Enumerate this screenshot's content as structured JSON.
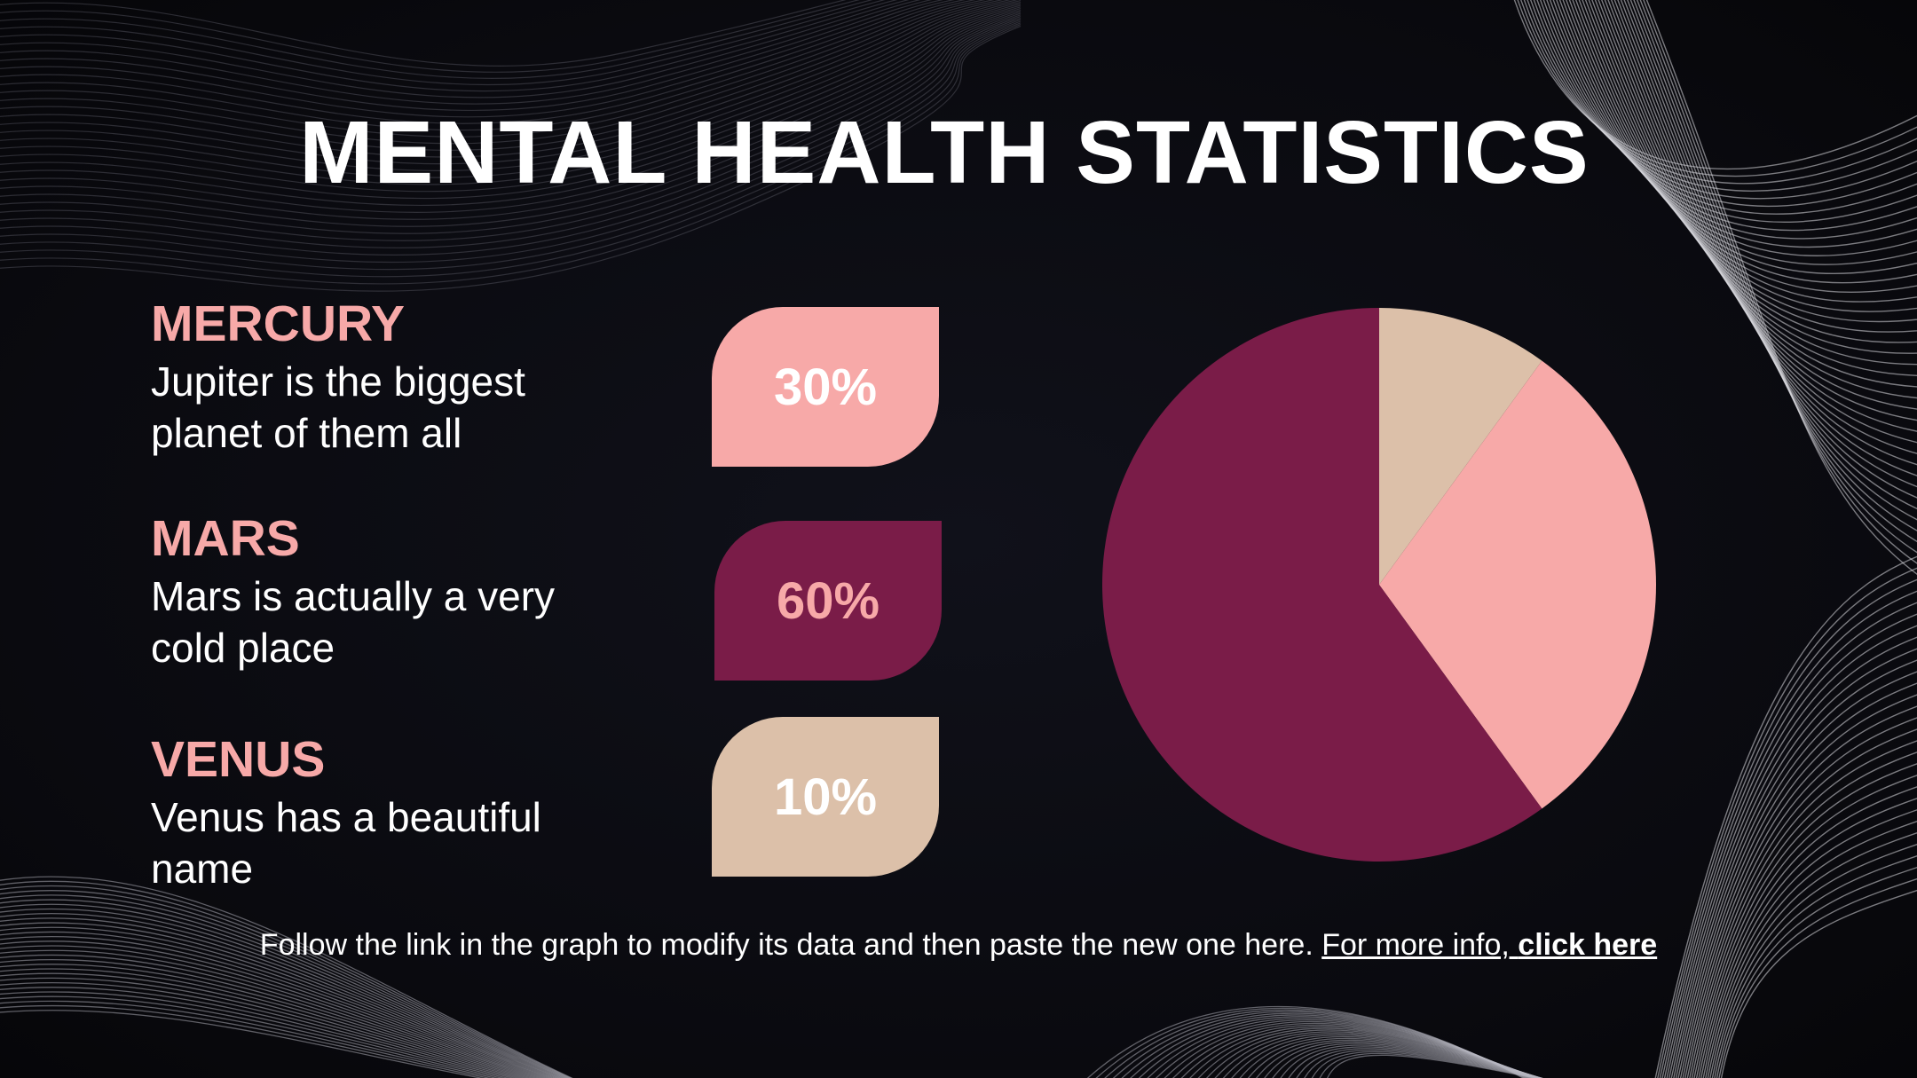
{
  "slide": {
    "title": "MENTAL HEALTH STATISTICS",
    "items": [
      {
        "name": "MERCURY",
        "description": "Jupiter is the biggest planet of them all",
        "percent_label": "30%"
      },
      {
        "name": "MARS",
        "description": "Mars is actually a very cold place",
        "percent_label": "60%"
      },
      {
        "name": "VENUS",
        "description": "Venus has a beautiful name",
        "percent_label": "10%"
      }
    ],
    "footer": {
      "text": "Follow the link in the graph to modify its data and then paste the new one here. ",
      "link_prefix": "For more info, ",
      "link_bold": "click here"
    }
  },
  "colors": {
    "mercury": "#f7a9a8",
    "mars": "#7a1c48",
    "venus": "#dcc0a9",
    "text_on_mars": "#f7a9a8",
    "text_on_light": "#ffffff"
  },
  "chart_data": {
    "type": "pie",
    "categories": [
      "Mercury",
      "Mars",
      "Venus"
    ],
    "values": [
      30,
      60,
      10
    ],
    "colors": [
      "#f7a9a8",
      "#7a1c48",
      "#dcc0a9"
    ],
    "start_angle_deg": 0,
    "direction": "clockwise",
    "order_from_top": [
      "Venus",
      "Mercury",
      "Mars"
    ]
  }
}
